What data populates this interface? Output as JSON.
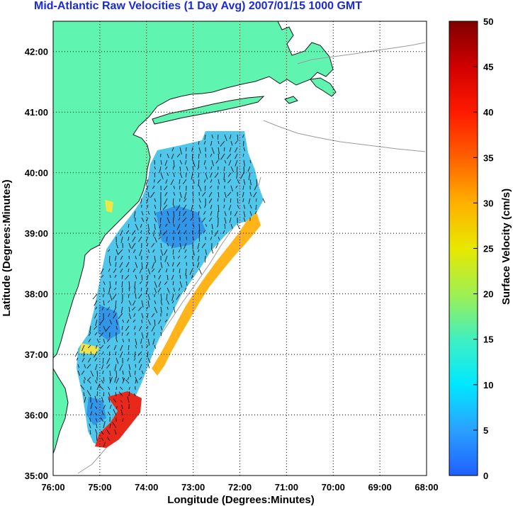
{
  "chart_data": {
    "type": "heatmap",
    "title": "Mid-Atlantic Raw Velocities (1 Day Avg) 2007/01/15 1000 GMT",
    "xlabel": "Longitude (Degrees:Minutes)",
    "ylabel": "Latitude (Degrees:Minutes)",
    "colorbar_label": "Surface Velocity (cm/s)",
    "x_ticks": [
      "76:00",
      "75:00",
      "74:00",
      "73:00",
      "72:00",
      "71:00",
      "70:00",
      "69:00",
      "68:00"
    ],
    "y_ticks": [
      "42:00",
      "41:00",
      "40:00",
      "39:00",
      "38:00",
      "37:00",
      "36:00",
      "35:00"
    ],
    "colorbar_ticks": [
      "50",
      "45",
      "40",
      "35",
      "30",
      "25",
      "20",
      "15",
      "10",
      "5",
      "0"
    ],
    "xlim": [
      -76,
      -68
    ],
    "ylim": [
      35,
      42.5
    ],
    "clim": [
      0,
      50
    ],
    "grid": true,
    "colors": {
      "land": "#5ff5b0",
      "coast": "#1a1a1a",
      "bathymetry": "#9a9a9a",
      "title": "#1a2bd6",
      "arrow": "#000000"
    }
  }
}
